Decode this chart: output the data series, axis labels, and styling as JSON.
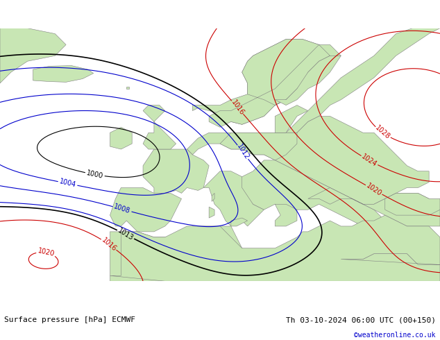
{
  "title_left": "Surface pressure [hPa] ECMWF",
  "title_right": "Th 03-10-2024 06:00 UTC (00+150)",
  "credit": "©weatheronline.co.uk",
  "background_land": "#c8e6b4",
  "background_sea": "#f0f0f0",
  "background_gray": "#b0b0b0",
  "fig_width": 6.34,
  "fig_height": 4.9,
  "dpi": 100,
  "bottom_bar_color": "#e0e0e0",
  "contour_black_color": "#000000",
  "contour_red_color": "#cc0000",
  "contour_blue_color": "#0000cc",
  "label_fontsize": 7,
  "title_fontsize": 8,
  "credit_fontsize": 7,
  "credit_color": "#0000cc"
}
